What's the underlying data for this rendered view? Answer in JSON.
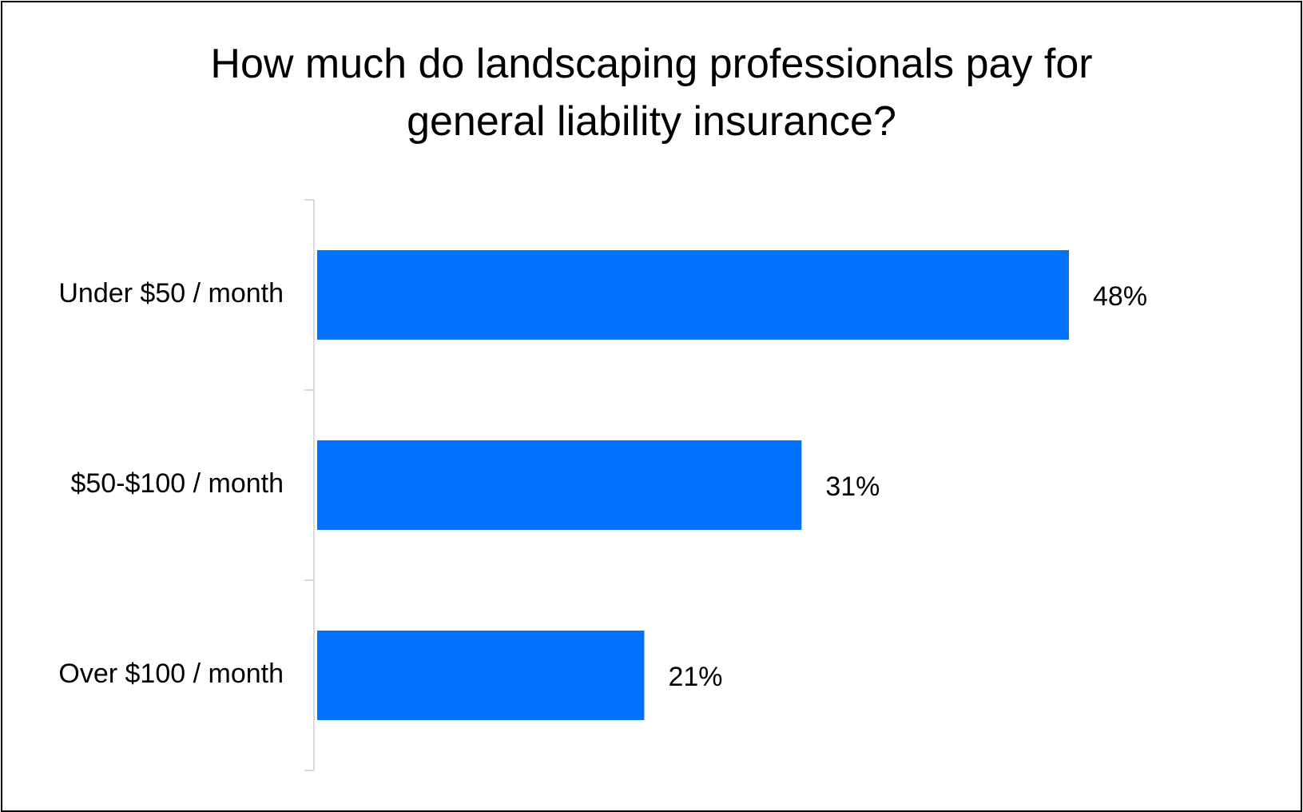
{
  "chart_data": {
    "type": "bar",
    "orientation": "horizontal",
    "title_lines": [
      "How much do landscaping professionals pay for",
      "general liability insurance?"
    ],
    "categories": [
      "Under $50 / month",
      "$50-$100 / month",
      "Over $100 / month"
    ],
    "values": [
      48,
      31,
      21
    ],
    "data_labels": [
      "48%",
      "31%",
      "21%"
    ],
    "xlim": [
      0,
      55
    ],
    "grid": false,
    "legend": "none",
    "bar_color": "#0070FF",
    "axis_color": "#D9D9D9"
  }
}
